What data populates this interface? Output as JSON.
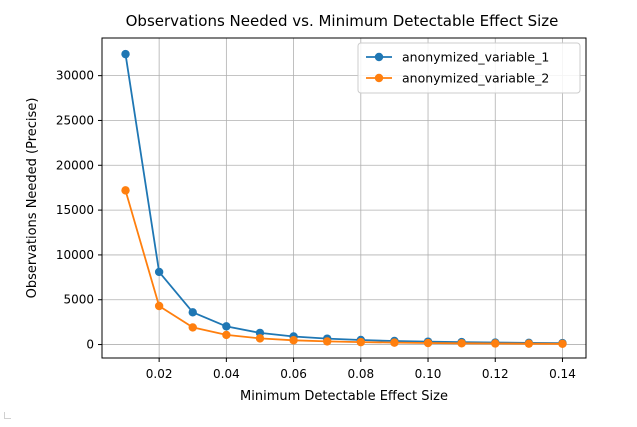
{
  "chart_data": {
    "type": "line",
    "title": "Observations Needed vs. Minimum Detectable Effect Size",
    "xlabel": "Minimum Detectable Effect Size",
    "ylabel": "Observations Needed (Precise)",
    "xlim": [
      0.003,
      0.147
    ],
    "ylim": [
      -1500,
      34200
    ],
    "xticks": [
      0.02,
      0.04,
      0.06,
      0.08,
      0.1,
      0.12,
      0.14
    ],
    "xtick_labels": [
      "0.02",
      "0.04",
      "0.06",
      "0.08",
      "0.10",
      "0.12",
      "0.14"
    ],
    "yticks": [
      0,
      5000,
      10000,
      15000,
      20000,
      25000,
      30000
    ],
    "ytick_labels": [
      "0",
      "5000",
      "10000",
      "15000",
      "20000",
      "25000",
      "30000"
    ],
    "grid": true,
    "legend_position": "top-right",
    "x": [
      0.01,
      0.02,
      0.03,
      0.04,
      0.05,
      0.06,
      0.07,
      0.08,
      0.09,
      0.1,
      0.11,
      0.12,
      0.13,
      0.14
    ],
    "series": [
      {
        "name": "anonymized_variable_1",
        "color": "#1f77b4",
        "values": [
          32400,
          8100,
          3600,
          2030,
          1300,
          900,
          660,
          510,
          400,
          325,
          270,
          225,
          190,
          165
        ]
      },
      {
        "name": "anonymized_variable_2",
        "color": "#ff7f0e",
        "values": [
          17200,
          4300,
          1910,
          1075,
          690,
          480,
          350,
          270,
          215,
          172,
          142,
          120,
          100,
          88
        ]
      }
    ]
  }
}
